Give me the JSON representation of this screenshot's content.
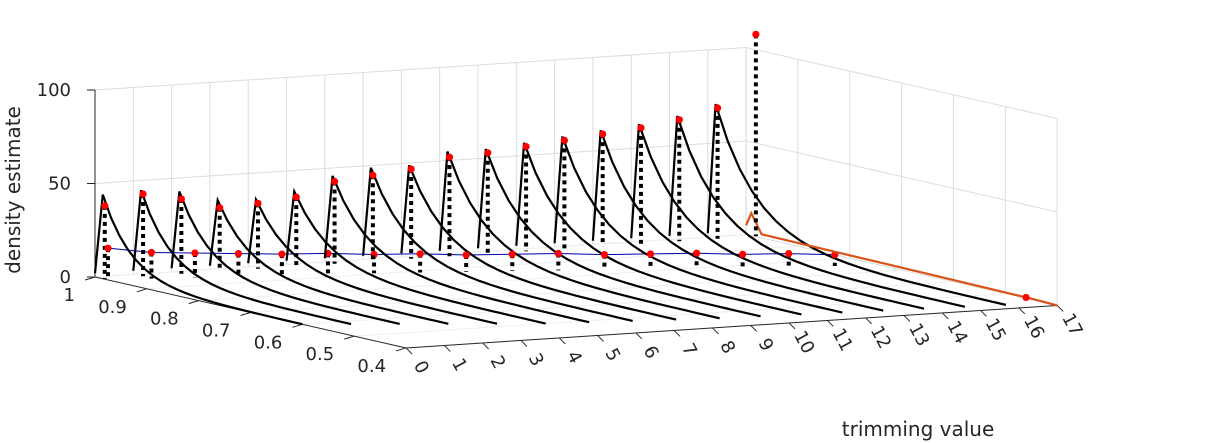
{
  "chart_data": {
    "type": "line",
    "title": "",
    "xlabel": "trimming value",
    "ylabel": "",
    "zlabel": "density estimate",
    "x_ticks": [
      "0",
      "1",
      "2",
      "3",
      "4",
      "5",
      "6",
      "7",
      "8",
      "9",
      "10",
      "11",
      "12",
      "13",
      "14",
      "15",
      "16",
      "17"
    ],
    "y_ticks": [
      "1",
      "0.9",
      "0.8",
      "0.7",
      "0.6",
      "0.5",
      "0.4"
    ],
    "z_ticks": [
      "0",
      "50",
      "100"
    ],
    "xlim": [
      0,
      17
    ],
    "ylim": [
      0.4,
      1
    ],
    "zlim": [
      0,
      100
    ],
    "grid": true,
    "colors": {
      "curve": "#000000",
      "marker": "#ff0000",
      "threshold_line": "#0000aa",
      "last_curve": "#d95319",
      "grid": "#dcdcdc"
    },
    "series": [
      {
        "trim": 0,
        "peak_y": 0.985,
        "peak_z": 45,
        "dot_z": 39,
        "low_y": 0.975,
        "low_z": 17,
        "tail_y": 0.6
      },
      {
        "trim": 1,
        "peak_y": 0.985,
        "peak_z": 46,
        "dot_z": 44,
        "low_y": 0.965,
        "low_z": 14,
        "tail_y": 0.58
      },
      {
        "trim": 2,
        "peak_y": 0.985,
        "peak_z": 44,
        "dot_z": 40,
        "low_y": 0.955,
        "low_z": 13,
        "tail_y": 0.56
      },
      {
        "trim": 3,
        "peak_y": 0.985,
        "peak_z": 38,
        "dot_z": 34,
        "low_y": 0.945,
        "low_z": 12,
        "tail_y": 0.54
      },
      {
        "trim": 4,
        "peak_y": 0.985,
        "peak_z": 37,
        "dot_z": 35,
        "low_y": 0.935,
        "low_z": 11,
        "tail_y": 0.52
      },
      {
        "trim": 5,
        "peak_y": 0.985,
        "peak_z": 40,
        "dot_z": 37,
        "low_y": 0.92,
        "low_z": 11,
        "tail_y": 0.5
      },
      {
        "trim": 6,
        "peak_y": 0.985,
        "peak_z": 47,
        "dot_z": 44,
        "low_y": 0.905,
        "low_z": 10,
        "tail_y": 0.49
      },
      {
        "trim": 7,
        "peak_y": 0.985,
        "peak_z": 50,
        "dot_z": 46,
        "low_y": 0.89,
        "low_z": 10,
        "tail_y": 0.48
      },
      {
        "trim": 8,
        "peak_y": 0.985,
        "peak_z": 50,
        "dot_z": 48,
        "low_y": 0.875,
        "low_z": 9,
        "tail_y": 0.47
      },
      {
        "trim": 9,
        "peak_y": 0.985,
        "peak_z": 56,
        "dot_z": 53,
        "low_y": 0.86,
        "low_z": 9,
        "tail_y": 0.46
      },
      {
        "trim": 10,
        "peak_y": 0.985,
        "peak_z": 56,
        "dot_z": 54,
        "low_y": 0.845,
        "low_z": 9,
        "tail_y": 0.455
      },
      {
        "trim": 11,
        "peak_y": 0.985,
        "peak_z": 58,
        "dot_z": 56,
        "low_y": 0.83,
        "low_z": 8,
        "tail_y": 0.45
      },
      {
        "trim": 12,
        "peak_y": 0.985,
        "peak_z": 60,
        "dot_z": 58,
        "low_y": 0.815,
        "low_z": 8,
        "tail_y": 0.445
      },
      {
        "trim": 13,
        "peak_y": 0.985,
        "peak_z": 62,
        "dot_z": 60,
        "low_y": 0.8,
        "low_z": 8,
        "tail_y": 0.44
      },
      {
        "trim": 14,
        "peak_y": 0.985,
        "peak_z": 64,
        "dot_z": 62,
        "low_y": 0.785,
        "low_z": 7,
        "tail_y": 0.435
      },
      {
        "trim": 15,
        "peak_y": 0.985,
        "peak_z": 67,
        "dot_z": 65,
        "low_y": 0.77,
        "low_z": 7,
        "tail_y": 0.43
      },
      {
        "trim": 16,
        "peak_y": 0.985,
        "peak_z": 72,
        "dot_z": 70,
        "low_y": 0.755,
        "low_z": 6,
        "tail_y": 0.425
      },
      {
        "trim": 17,
        "peak_y": 0.985,
        "peak_z": 108,
        "dot_z": 108,
        "low_y": 0.42,
        "low_z": 0,
        "tail_y": 0.4,
        "last": true
      }
    ]
  }
}
